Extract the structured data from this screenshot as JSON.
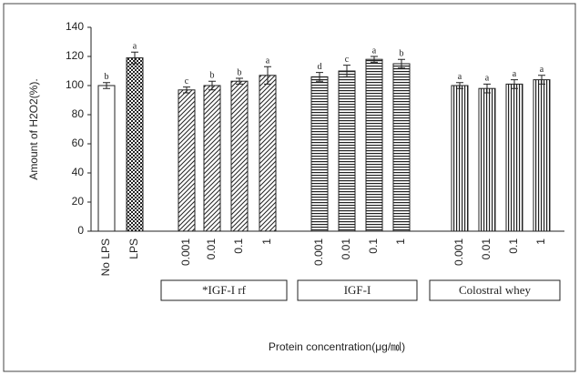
{
  "chart_data": {
    "type": "bar",
    "ylabel": "Amount of H2O2(%).",
    "xlabel": "Protein concentration(μg/㏖)",
    "categories": [
      "No LPS",
      "LPS",
      "0.001",
      "0.01",
      "0.1",
      "1",
      "0.001",
      "0.01",
      "0.1",
      "1",
      "0.001",
      "0.01",
      "0.1",
      "1"
    ],
    "values": [
      100,
      119,
      97,
      100,
      103,
      107,
      106,
      110,
      118,
      115,
      100,
      98,
      101,
      104
    ],
    "errors": [
      2,
      4,
      2,
      3,
      2,
      6,
      3,
      4,
      2,
      3,
      2,
      3,
      3,
      3
    ],
    "annotations": [
      "b",
      "a",
      "c",
      "b",
      "b",
      "a",
      "d",
      "c",
      "a",
      "b",
      "a",
      "a",
      "a",
      "a"
    ],
    "patterns": [
      "white",
      "checker",
      "diagonal",
      "diagonal",
      "diagonal",
      "diagonal",
      "horizontal",
      "horizontal",
      "horizontal",
      "horizontal",
      "vertical",
      "vertical",
      "vertical",
      "vertical"
    ],
    "groups": [
      "*IGF-I rf",
      "IGF-I",
      "Colostral whey"
    ],
    "ylim": [
      0,
      140
    ],
    "yticks": [
      0,
      20,
      40,
      60,
      80,
      100,
      120,
      140
    ]
  }
}
